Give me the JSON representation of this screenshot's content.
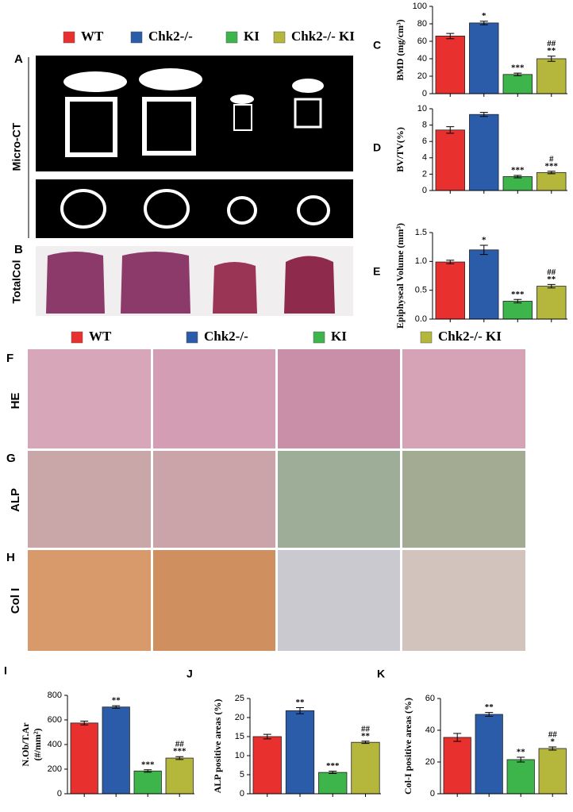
{
  "legend": [
    {
      "name": "WT",
      "color": "#e8312f"
    },
    {
      "name": "Chk2-/-",
      "color": "#2a5caa"
    },
    {
      "name": "KI",
      "color": "#3db54a"
    },
    {
      "name": "Chk2-/- KI",
      "color": "#b5b63c"
    }
  ],
  "panel_labels": [
    "A",
    "B",
    "F",
    "G",
    "H"
  ],
  "row_labels": [
    "Micro-CT",
    "TotalCol",
    "HE",
    "ALP",
    "Col I"
  ],
  "chart_data": [
    {
      "type": "bar",
      "label": "C",
      "ylabel": "BMD (mg/cm³)",
      "ylim": [
        0,
        100
      ],
      "yticks": [
        0,
        20,
        40,
        60,
        80,
        100
      ],
      "values": [
        66,
        81,
        22,
        40
      ],
      "errors": [
        3,
        2,
        1.5,
        3
      ],
      "colors": [
        "#e8312f",
        "#2a5caa",
        "#3db54a",
        "#b5b63c"
      ],
      "annotations": [
        [],
        [
          "*"
        ],
        [
          "***"
        ],
        [
          "##",
          "**"
        ]
      ]
    },
    {
      "type": "bar",
      "label": "D",
      "ylabel": "BV/TV(%)",
      "ylim": [
        0,
        10
      ],
      "yticks": [
        0,
        2,
        4,
        6,
        8,
        10
      ],
      "values": [
        7.4,
        9.3,
        1.7,
        2.2
      ],
      "errors": [
        0.4,
        0.25,
        0.15,
        0.15
      ],
      "colors": [
        "#e8312f",
        "#2a5caa",
        "#3db54a",
        "#b5b63c"
      ],
      "annotations": [
        [],
        [],
        [
          "***"
        ],
        [
          "#",
          "***"
        ]
      ]
    },
    {
      "type": "bar",
      "label": "E",
      "ylabel": "Epiphyseal Volume (mm³)",
      "ylim": [
        0,
        1.5
      ],
      "yticks": [
        {
          "value": 0,
          "label": "0.0"
        },
        0.5,
        {
          "value": 1,
          "label": "1.0"
        },
        1.5
      ],
      "values": [
        0.99,
        1.2,
        0.31,
        0.57
      ],
      "errors": [
        0.03,
        0.08,
        0.03,
        0.03
      ],
      "colors": [
        "#e8312f",
        "#2a5caa",
        "#3db54a",
        "#b5b63c"
      ],
      "annotations": [
        [],
        [
          "*"
        ],
        [
          "***"
        ],
        [
          "##",
          "**"
        ]
      ]
    },
    {
      "type": "bar",
      "label": "I",
      "ylabel": [
        "N.Ob/T.Ar",
        "(#/mm²)"
      ],
      "ylim": [
        0,
        800
      ],
      "yticks": [
        0,
        200,
        400,
        600,
        800
      ],
      "values": [
        575,
        705,
        185,
        290
      ],
      "errors": [
        15,
        10,
        10,
        12
      ],
      "colors": [
        "#e8312f",
        "#2a5caa",
        "#3db54a",
        "#b5b63c"
      ],
      "annotations": [
        [],
        [
          "**"
        ],
        [
          "***"
        ],
        [
          "##",
          "***"
        ]
      ]
    },
    {
      "type": "bar",
      "label": "J",
      "ylabel": "ALP positive areas (%)",
      "ylim": [
        0,
        25
      ],
      "yticks": [
        0,
        5,
        10,
        15,
        20,
        25
      ],
      "values": [
        15,
        21.8,
        5.6,
        13.5
      ],
      "errors": [
        0.6,
        0.8,
        0.3,
        0.3
      ],
      "colors": [
        "#e8312f",
        "#2a5caa",
        "#3db54a",
        "#b5b63c"
      ],
      "annotations": [
        [],
        [
          "**"
        ],
        [
          "***"
        ],
        [
          "##",
          "**"
        ]
      ]
    },
    {
      "type": "bar",
      "label": "K",
      "ylabel": "Col-I positive areas (%)",
      "ylim": [
        0,
        60
      ],
      "yticks": [
        0,
        20,
        40,
        60
      ],
      "values": [
        35.5,
        50,
        21.5,
        28.5
      ],
      "errors": [
        2.5,
        1.2,
        1.5,
        1
      ],
      "colors": [
        "#e8312f",
        "#2a5caa",
        "#3db54a",
        "#b5b63c"
      ],
      "annotations": [
        [],
        [
          "**"
        ],
        [
          "**"
        ],
        [
          "##",
          "*"
        ]
      ]
    }
  ]
}
